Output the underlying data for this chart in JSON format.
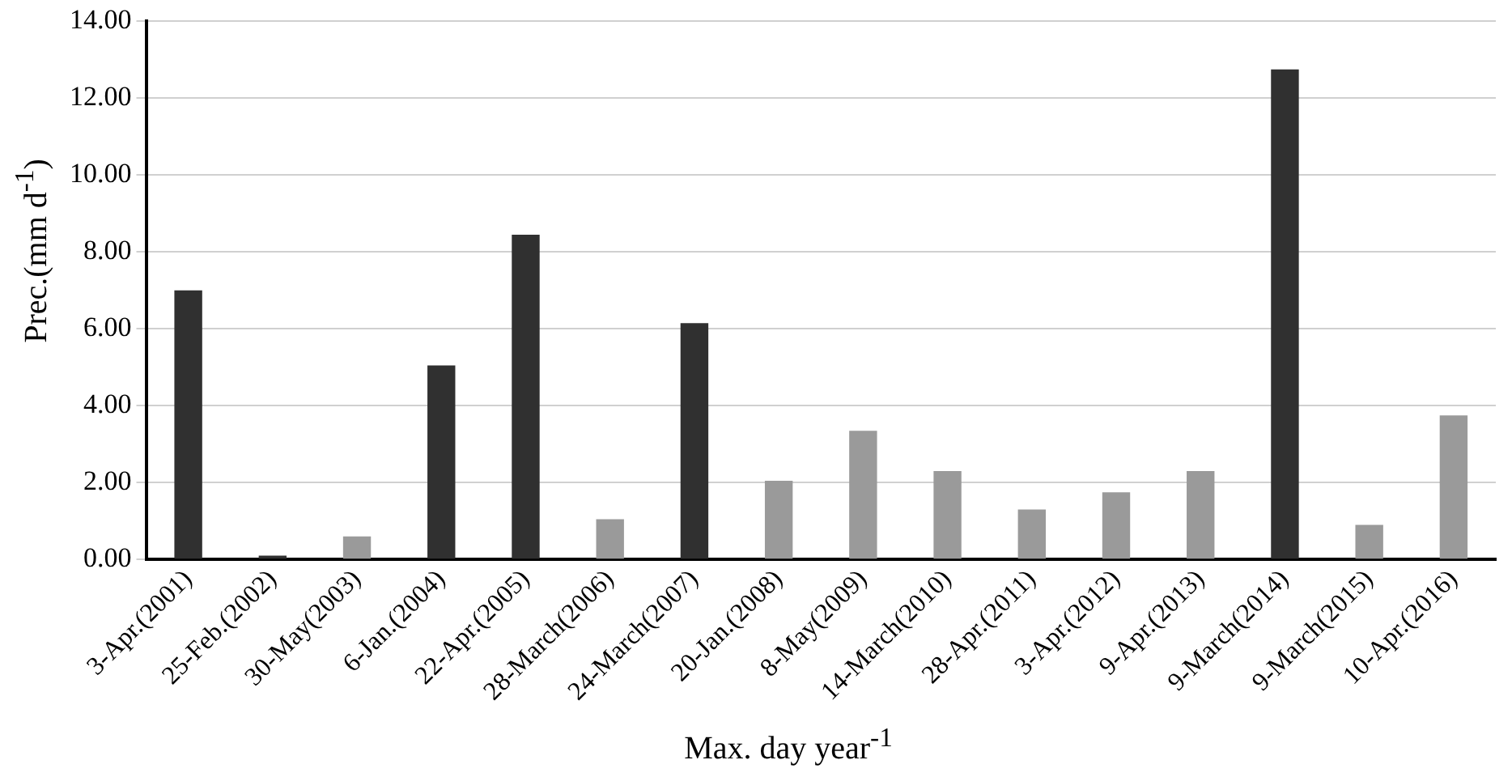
{
  "chart_data": {
    "type": "bar",
    "xlabel": "Max. day year$^{-1}$",
    "ylabel": "Prec.(mm d$^{-1}$)",
    "categories": [
      "3-Apr.(2001)",
      "25-Feb.(2002)",
      "30-May(2003)",
      "6-Jan.(2004)",
      "22-Apr.(2005)",
      "28-March(2006)",
      "24-March(2007)",
      "20-Jan.(2008)",
      "8-May(2009)",
      "14-March(2010)",
      "28-Apr.(2011)",
      "3-Apr.(2012)",
      "9-Apr.(2013)",
      "9-March(2014)",
      "9-March(2015)",
      "10-Apr.(2016)"
    ],
    "values": [
      7.0,
      0.1,
      0.6,
      5.05,
      8.45,
      1.05,
      6.15,
      2.05,
      3.35,
      2.3,
      1.3,
      1.75,
      2.3,
      12.75,
      0.9,
      3.75
    ],
    "colors": [
      "#303030",
      "#303030",
      "#9a9a9a",
      "#303030",
      "#303030",
      "#9a9a9a",
      "#303030",
      "#9a9a9a",
      "#9a9a9a",
      "#9a9a9a",
      "#9a9a9a",
      "#9a9a9a",
      "#9a9a9a",
      "#303030",
      "#9a9a9a",
      "#9a9a9a"
    ],
    "ylim": [
      0,
      14
    ],
    "yticks": [
      {
        "value": 0,
        "label": "0.00"
      },
      {
        "value": 2,
        "label": "2.00"
      },
      {
        "value": 4,
        "label": "4.00"
      },
      {
        "value": 6,
        "label": "6.00"
      },
      {
        "value": 8,
        "label": "8.00"
      },
      {
        "value": 10,
        "label": "10.00"
      },
      {
        "value": 12,
        "label": "12.00"
      },
      {
        "value": 14,
        "label": "14.00"
      }
    ],
    "grid": "y",
    "legend": false
  }
}
